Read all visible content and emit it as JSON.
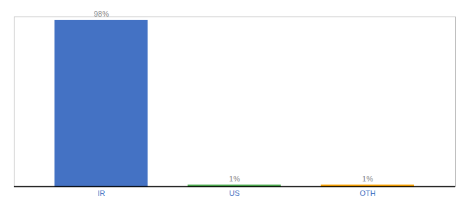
{
  "chart_data": {
    "type": "bar",
    "categories": [
      "IR",
      "US",
      "OTH"
    ],
    "values": [
      98,
      1,
      1
    ],
    "value_labels": [
      "98%",
      "1%",
      "1%"
    ],
    "colors": [
      "#4472c4",
      "#4caf50",
      "#ffa500"
    ],
    "ylim": [
      0,
      100
    ],
    "data_labels": true,
    "tick_labels": "x",
    "grid": false
  }
}
